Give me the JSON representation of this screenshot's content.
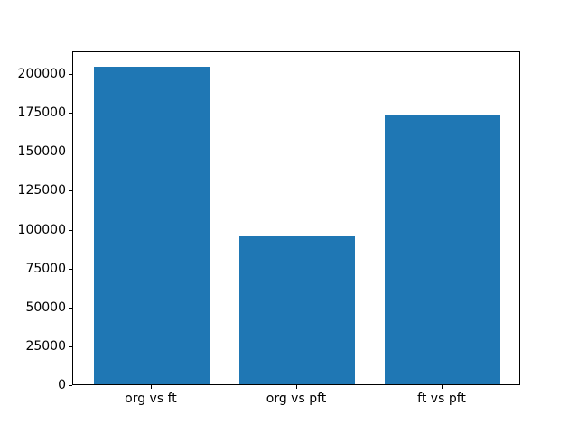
{
  "figure": {
    "background_color": "#ffffff",
    "axis_color": "#000000"
  },
  "chart_data": {
    "type": "bar",
    "title": "",
    "xlabel": "",
    "ylabel": "",
    "categories": [
      "org vs ft",
      "org vs pft",
      "ft vs pft"
    ],
    "values": [
      204000,
      95000,
      173000
    ],
    "x": [
      0,
      1,
      2
    ],
    "bar_width": 0.8,
    "bar_color": "#1f77b4",
    "xlim": [
      -0.54,
      2.54
    ],
    "ylim": [
      0,
      214500
    ],
    "yticks": [
      0,
      25000,
      50000,
      75000,
      100000,
      125000,
      150000,
      175000,
      200000
    ],
    "grid": false,
    "legend": null
  }
}
